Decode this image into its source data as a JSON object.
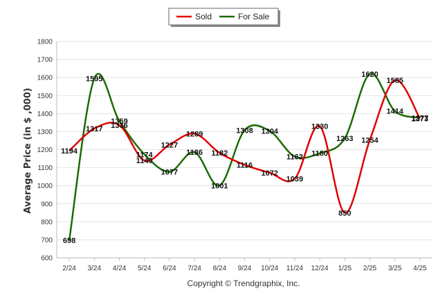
{
  "chart_data": {
    "type": "line",
    "categories": [
      "2/24",
      "3/24",
      "4/24",
      "5/24",
      "6/24",
      "7/24",
      "8/24",
      "9/24",
      "10/24",
      "11/24",
      "12/24",
      "1/25",
      "2/25",
      "3/25",
      "4/25"
    ],
    "series": [
      {
        "name": "Sold",
        "color": "#e00000",
        "values": [
          1194,
          1317,
          1336,
          1140,
          1227,
          1289,
          1182,
          1116,
          1072,
          1039,
          1330,
          850,
          1254,
          1585,
          1373
        ]
      },
      {
        "name": "For Sale",
        "color": "#1a6b00",
        "values": [
          698,
          1595,
          1359,
          1174,
          1077,
          1186,
          1001,
          1308,
          1304,
          1162,
          1180,
          1263,
          1620,
          1414,
          1377
        ]
      }
    ],
    "ylabel": "Average Price (in $ ,000)",
    "xlabel": "",
    "ylim": [
      600,
      1800
    ],
    "yticks": [
      600,
      700,
      800,
      900,
      1000,
      1100,
      1200,
      1300,
      1400,
      1500,
      1600,
      1700,
      1800
    ],
    "grid": true,
    "legend_position": "top-center",
    "footer": "Copyright © Trendgraphix, Inc."
  }
}
